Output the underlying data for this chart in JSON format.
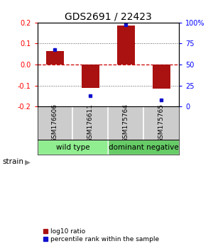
{
  "title": "GDS2691 / 22423",
  "samples": [
    "GSM176606",
    "GSM176611",
    "GSM175764",
    "GSM175765"
  ],
  "log10_ratio": [
    0.065,
    -0.11,
    0.185,
    -0.115
  ],
  "percentile_rank": [
    0.68,
    0.13,
    0.97,
    0.08
  ],
  "groups": [
    {
      "label": "wild type",
      "samples": [
        0,
        1
      ],
      "color": "#90ee90"
    },
    {
      "label": "dominant negative",
      "samples": [
        2,
        3
      ],
      "color": "#66cc66"
    }
  ],
  "bar_color": "#aa1111",
  "dot_color": "#1111cc",
  "ylim": [
    -0.2,
    0.2
  ],
  "yticks_left": [
    -0.2,
    -0.1,
    0.0,
    0.1,
    0.2
  ],
  "yticks_right": [
    0,
    25,
    50,
    75,
    100
  ],
  "hline_zero_color": "#cc0000",
  "hline_dotted_color": "#555555",
  "bg_color": "#ffffff",
  "plot_bg": "#ffffff",
  "title_fontsize": 10,
  "tick_fontsize": 7,
  "legend_red_label": "log10 ratio",
  "legend_blue_label": "percentile rank within the sample",
  "strain_label": "strain",
  "group_label_fontsize": 7.5,
  "sample_label_fontsize": 6.5
}
